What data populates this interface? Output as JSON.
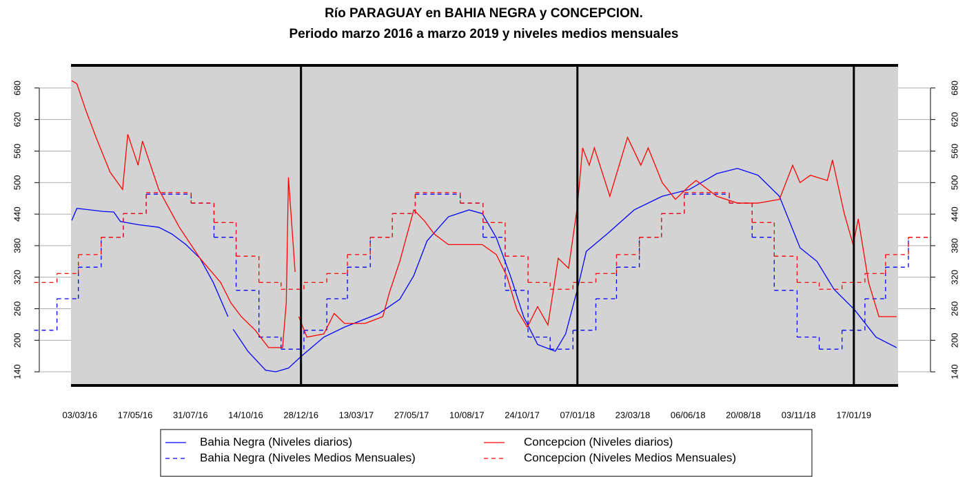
{
  "chart_data": {
    "type": "line",
    "title": "Río PARAGUAY en BAHIA NEGRA y CONCEPCION.",
    "subtitle": "Periodo marzo 2016 a marzo 2019 y niveles medios mensuales",
    "xlim": [
      "20/02/16",
      "18/03/19"
    ],
    "ylim": [
      114,
      723
    ],
    "yticks": [
      140,
      200,
      260,
      320,
      380,
      440,
      500,
      560,
      620,
      680
    ],
    "xticks": [
      "03/03/16",
      "17/05/16",
      "31/07/16",
      "14/10/16",
      "28/12/16",
      "13/03/17",
      "27/05/17",
      "10/08/17",
      "24/10/17",
      "07/01/18",
      "23/03/18",
      "06/06/18",
      "20/08/18",
      "03/11/18",
      "17/01/19"
    ],
    "vlines": [
      "28/12/16",
      "07/01/18",
      "17/01/19"
    ],
    "background": "#d3d3d3",
    "legend": "bottom",
    "series": [
      {
        "name": "Bahia Negra (Niveles diarios)",
        "color": "#0000ff",
        "dashed": false,
        "step": false,
        "x": [
          "21/02/16",
          "28/02/16",
          "04/04/16",
          "18/04/16",
          "27/04/16",
          "21/05/16",
          "18/06/16",
          "06/07/16",
          "25/07/16",
          "13/08/16",
          "31/08/16",
          "20/09/16",
          "24/09/16",
          "27/09/16",
          "17/10/16",
          "10/11/16",
          "24/11/16",
          "11/12/16",
          "28/12/16",
          "28/01/17",
          "25/02/17",
          "13/04/17",
          "11/05/17",
          "30/05/17",
          "17/06/17",
          "16/07/17",
          "13/08/17",
          "31/08/17",
          "19/09/17",
          "08/10/17",
          "26/10/17",
          "14/11/17",
          "08/12/17",
          "22/12/17",
          "07/01/18",
          "19/01/18",
          "16/02/18",
          "25/03/18",
          "02/05/18",
          "08/06/18",
          "15/07/18",
          "12/08/18",
          "09/09/18",
          "08/10/18",
          "05/11/18",
          "28/11/18",
          "21/12/18",
          "18/01/19",
          "16/02/19",
          "16/03/19"
        ],
        "values": [
          428,
          451,
          445,
          444,
          426,
          420,
          415,
          402,
          382,
          356,
          310,
          245,
          null,
          221,
          179,
          143,
          140,
          147,
          169,
          206,
          225,
          251,
          278,
          323,
          389,
          435,
          448,
          441,
          395,
          323,
          245,
          192,
          179,
          212,
          297,
          369,
          402,
          448,
          474,
          487,
          517,
          527,
          514,
          474,
          376,
          350,
          297,
          258,
          206,
          186
        ]
      },
      {
        "name": "Bahia Negra (Niveles Medios Mensuales)",
        "color": "#0000ff",
        "dashed": true,
        "step": true,
        "x": [
          "01/01/16",
          "01/02/16",
          "01/03/16",
          "01/04/16",
          "01/05/16",
          "01/06/16",
          "01/07/16",
          "01/08/16",
          "01/09/16",
          "01/10/16",
          "01/11/16",
          "01/12/16",
          "01/01/17",
          "01/02/17",
          "01/03/17",
          "01/04/17",
          "01/05/17",
          "01/06/17",
          "01/07/17",
          "01/08/17",
          "01/09/17",
          "01/10/17",
          "01/11/17",
          "01/12/17",
          "01/01/18",
          "01/02/18",
          "01/03/18",
          "01/04/18",
          "01/05/18",
          "01/06/18",
          "01/07/18",
          "01/08/18",
          "01/09/18",
          "01/10/18",
          "01/11/18",
          "01/12/18",
          "01/01/19",
          "01/02/19",
          "01/03/19",
          "01/04/19"
        ],
        "values": [
          219,
          279,
          339,
          396,
          441,
          478,
          478,
          461,
          396,
          295,
          206,
          183,
          219,
          279,
          339,
          396,
          441,
          478,
          478,
          461,
          396,
          295,
          206,
          183,
          219,
          279,
          339,
          396,
          441,
          478,
          478,
          461,
          396,
          295,
          206,
          183,
          219,
          279,
          339,
          396
        ]
      },
      {
        "name": "Concepcion (Niveles diarios)",
        "color": "#ff0000",
        "dashed": false,
        "step": false,
        "x": [
          "21/02/16",
          "28/02/16",
          "11/03/16",
          "25/03/16",
          "13/04/16",
          "30/04/16",
          "07/05/16",
          "21/05/16",
          "27/05/16",
          "18/06/16",
          "16/07/16",
          "13/08/16",
          "10/09/16",
          "24/09/16",
          "08/10/16",
          "27/10/16",
          "14/11/16",
          "03/12/16",
          "08/12/16",
          "11/12/16",
          "20/12/16",
          "22/12/16",
          "25/12/16",
          "05/01/17",
          "28/01/17",
          "11/02/17",
          "25/02/17",
          "25/03/17",
          "18/04/17",
          "27/04/17",
          "11/05/17",
          "30/05/17",
          "13/06/17",
          "27/06/17",
          "16/07/17",
          "13/08/17",
          "31/08/17",
          "19/09/17",
          "03/10/17",
          "17/10/17",
          "31/10/17",
          "14/11/17",
          "28/11/17",
          "12/12/17",
          "26/12/17",
          "07/01/18",
          "14/01/18",
          "23/01/18",
          "30/01/18",
          "20/02/18",
          "16/03/18",
          "03/04/18",
          "13/04/18",
          "02/05/18",
          "20/05/18",
          "08/06/18",
          "17/06/18",
          "15/07/18",
          "12/08/18",
          "09/09/18",
          "08/10/18",
          "26/10/18",
          "05/11/18",
          "19/11/18",
          "12/12/18",
          "19/12/18",
          "04/01/19",
          "16/01/19",
          "23/01/19",
          "06/02/19",
          "20/02/19",
          "16/03/19"
        ],
        "values": [
          694,
          688,
          638,
          586,
          520,
          487,
          592,
          533,
          579,
          487,
          415,
          356,
          310,
          271,
          245,
          219,
          186,
          186,
          271,
          510,
          330,
          null,
          245,
          206,
          212,
          251,
          232,
          232,
          245,
          291,
          350,
          448,
          428,
          402,
          382,
          382,
          382,
          363,
          323,
          258,
          225,
          264,
          229,
          356,
          337,
          455,
          566,
          533,
          566,
          474,
          586,
          533,
          566,
          500,
          468,
          494,
          504,
          474,
          461,
          461,
          468,
          533,
          500,
          514,
          504,
          543,
          441,
          382,
          431,
          310,
          245,
          245
        ]
      },
      {
        "name": "Concepcion (Niveles Medios Mensuales)",
        "color": "#ff0000",
        "dashed": true,
        "step": true,
        "x": [
          "01/01/16",
          "01/02/16",
          "01/03/16",
          "01/04/16",
          "01/05/16",
          "01/06/16",
          "01/07/16",
          "01/08/16",
          "01/09/16",
          "01/10/16",
          "01/11/16",
          "01/12/16",
          "01/01/17",
          "01/02/17",
          "01/03/17",
          "01/04/17",
          "01/05/17",
          "01/06/17",
          "01/07/17",
          "01/08/17",
          "01/09/17",
          "01/10/17",
          "01/11/17",
          "01/12/17",
          "01/01/18",
          "01/02/18",
          "01/03/18",
          "01/04/18",
          "01/05/18",
          "01/06/18",
          "01/07/18",
          "01/08/18",
          "01/09/18",
          "01/10/18",
          "01/11/18",
          "01/12/18",
          "01/01/19",
          "01/02/19",
          "01/03/19",
          "01/04/19"
        ],
        "values": [
          310,
          327,
          363,
          396,
          441,
          481,
          481,
          461,
          424,
          360,
          310,
          297,
          310,
          327,
          363,
          396,
          441,
          481,
          481,
          461,
          424,
          360,
          310,
          297,
          310,
          327,
          363,
          396,
          441,
          481,
          481,
          461,
          424,
          360,
          310,
          297,
          310,
          327,
          363,
          396
        ]
      }
    ]
  }
}
